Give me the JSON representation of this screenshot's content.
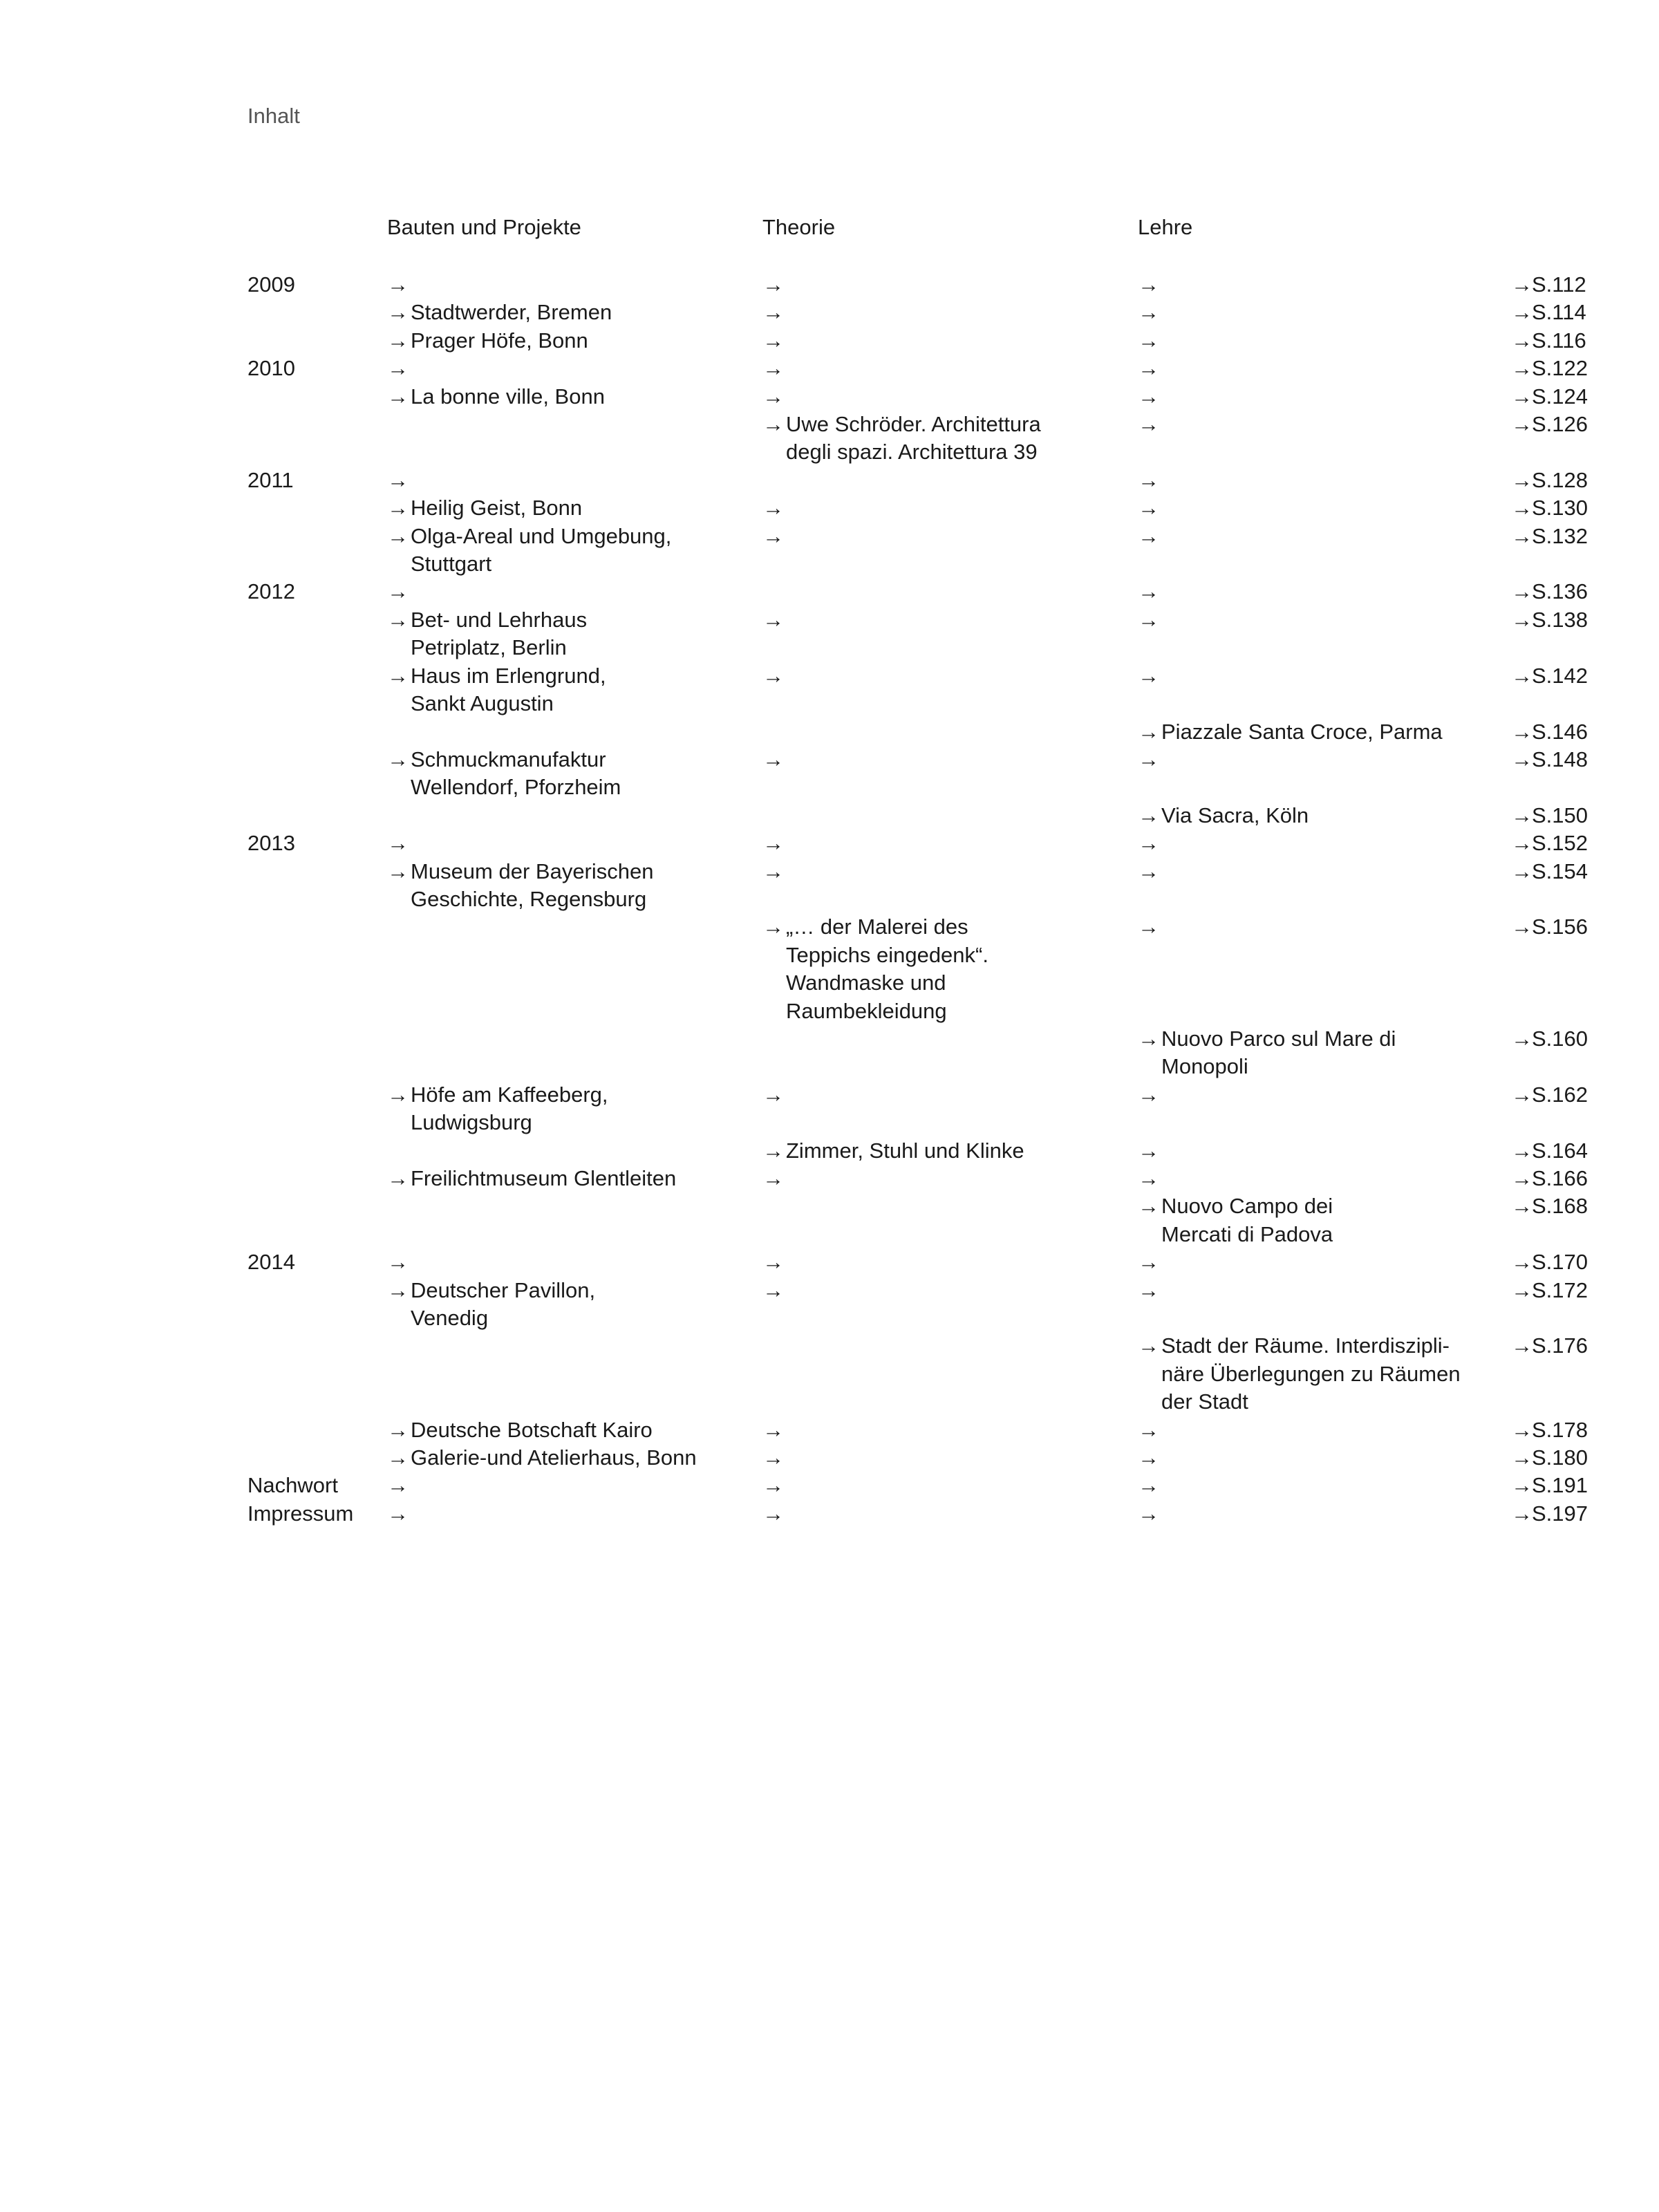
{
  "title": "Inhalt",
  "columns": {
    "projects": "Bauten und Projekte",
    "theory": "Theorie",
    "teaching": "Lehre"
  },
  "arrow": "→",
  "rows": [
    {
      "year": "2009",
      "p": "",
      "t": "",
      "l": "",
      "page": "S.112"
    },
    {
      "year": "",
      "p": "Stadtwerder, Bremen",
      "t": "",
      "l": "",
      "page": "S.114"
    },
    {
      "year": "",
      "p": "Prager Höfe, Bonn",
      "t": "",
      "l": "",
      "page": "S.116"
    },
    {
      "year": "2010",
      "p": "",
      "t": "",
      "l": "",
      "page": "S.122"
    },
    {
      "year": "",
      "p": "La bonne ville, Bonn",
      "t": "",
      "l": "",
      "page": "S.124"
    },
    {
      "year": "",
      "p": null,
      "t": "Uwe Schröder. Architettura\ndegli spazi. Architettura 39",
      "l": "",
      "page": "S.126"
    },
    {
      "year": "2011",
      "p": "",
      "t": null,
      "l": "",
      "page": "S.128"
    },
    {
      "year": "",
      "p": "Heilig Geist, Bonn",
      "t": "",
      "l": "",
      "page": "S.130"
    },
    {
      "year": "",
      "p": "Olga-Areal und Umgebung,\nStuttgart",
      "t": "",
      "l": "",
      "page": "S.132"
    },
    {
      "year": "2012",
      "p": "",
      "t": null,
      "l": "",
      "page": "S.136"
    },
    {
      "year": "",
      "p": "Bet- und Lehrhaus\nPetriplatz, Berlin",
      "t": "",
      "l": "",
      "page": "S.138"
    },
    {
      "year": "",
      "p": "Haus im Erlengrund,\nSankt Augustin",
      "t": "",
      "l": "",
      "page": "S.142"
    },
    {
      "year": "",
      "p": null,
      "t": null,
      "l": "Piazzale Santa Croce, Parma",
      "page": "S.146"
    },
    {
      "year": "",
      "p": "Schmuckmanufaktur\nWellendorf, Pforzheim",
      "t": "",
      "l": "",
      "page": "S.148"
    },
    {
      "year": "",
      "p": null,
      "t": null,
      "l": "Via Sacra, Köln",
      "page": "S.150"
    },
    {
      "year": "2013",
      "p": "",
      "t": "",
      "l": "",
      "page": "S.152"
    },
    {
      "year": "",
      "p": "Museum der Bayerischen\nGeschichte, Regensburg",
      "t": "",
      "l": "",
      "page": "S.154"
    },
    {
      "year": "",
      "p": null,
      "t": "„… der Malerei des\nTeppichs eingedenk“.\nWandmaske und\nRaumbekleidung",
      "l": "",
      "page": "S.156"
    },
    {
      "year": "",
      "p": null,
      "t": null,
      "l": "Nuovo Parco sul Mare di\nMonopoli",
      "page": "S.160"
    },
    {
      "year": "",
      "p": "Höfe am Kaffeeberg,\nLudwigsburg",
      "t": "",
      "l": "",
      "page": "S.162"
    },
    {
      "year": "",
      "p": null,
      "t": "Zimmer, Stuhl und Klinke",
      "l": "",
      "page": "S.164"
    },
    {
      "year": "",
      "p": "Freilichtmuseum Glentleiten",
      "t": "",
      "l": "",
      "page": "S.166"
    },
    {
      "year": "",
      "p": null,
      "t": null,
      "l": "Nuovo Campo dei\nMercati di Padova",
      "page": "S.168"
    },
    {
      "year": "2014",
      "p": "",
      "t": "",
      "l": "",
      "page": "S.170"
    },
    {
      "year": "",
      "p": "Deutscher Pavillon,\nVenedig",
      "t": "",
      "l": "",
      "page": "S.172"
    },
    {
      "year": "",
      "p": null,
      "t": null,
      "l": "Stadt der Räume. Interdiszipli-\nnäre Überlegungen zu Räumen\nder Stadt",
      "page": "S.176"
    },
    {
      "year": "",
      "p": "Deutsche Botschaft Kairo",
      "t": "",
      "l": "",
      "page": "S.178"
    },
    {
      "year": "",
      "p": "Galerie-und Atelierhaus, Bonn",
      "t": "",
      "l": "",
      "page": "S.180"
    },
    {
      "year": "Nachwort",
      "p": "",
      "t": "",
      "l": "",
      "page": "S.191"
    },
    {
      "year": "Impressum",
      "p": "",
      "t": "",
      "l": "",
      "page": "S.197"
    }
  ]
}
